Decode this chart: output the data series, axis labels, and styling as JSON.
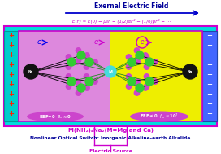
{
  "title_top": "Exernal Electric Field",
  "formula": "E(F) = E(0) − μ₀F − (1/2)αF² − (1/6)βF³ − ⋯",
  "label_left": "EEF=0  βx≈0",
  "label_right": "EEF≠0  βx≈10⁷",
  "mol_formula": "M(NH₂)₄Na₂(M=Mg and Ca)",
  "subtitle": "Nonlinear Optical Switch: Inorganic Alkaline-earth Alkalide",
  "bottom_label": "Electric Source",
  "bg_color": "#ffffff",
  "cyan_color": "#00dddd",
  "purple_bg": "#dd88dd",
  "yellow_bg": "#eeee00",
  "border_color": "#cc00cc",
  "left_plate_color": "#00cccc",
  "right_plate_color": "#4466ff",
  "plus_color": "#ff2200",
  "minus_color": "#2244ff",
  "arrow_color": "#0000cc",
  "title_color": "#000099",
  "formula_color": "#cc00cc",
  "mol_color": "#cc00cc",
  "subtitle_color": "#000099",
  "electric_color": "#cc00cc",
  "na_color": "#111111",
  "m_color": "#44dddd",
  "green_atom": "#33cc33",
  "pink_atom": "#cc44cc",
  "electron_blue": "#0000ee",
  "electron_purple": "#cc00cc"
}
